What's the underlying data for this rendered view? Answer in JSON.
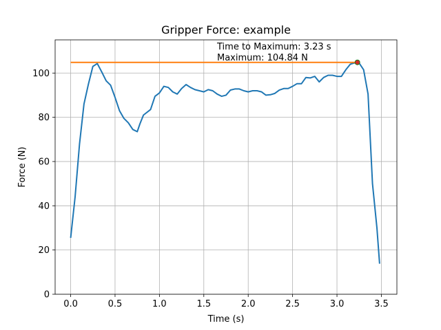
{
  "chart_data": {
    "type": "line",
    "title": "Gripper Force: example",
    "xlabel": "Time (s)",
    "ylabel": "Force (N)",
    "xlim": [
      -0.175,
      3.675
    ],
    "ylim": [
      0,
      115
    ],
    "xticks": [
      0.0,
      0.5,
      1.0,
      1.5,
      2.0,
      2.5,
      3.0,
      3.5
    ],
    "xtick_labels": [
      "0.0",
      "0.5",
      "1.0",
      "1.5",
      "2.0",
      "2.5",
      "3.0",
      "3.5"
    ],
    "yticks": [
      0,
      20,
      40,
      60,
      80,
      100
    ],
    "ytick_labels": [
      "0",
      "20",
      "40",
      "60",
      "80",
      "100"
    ],
    "grid": true,
    "series": [
      {
        "color": "#1f77b4",
        "x": [
          0.0,
          0.05,
          0.1,
          0.15,
          0.2,
          0.25,
          0.3,
          0.35,
          0.4,
          0.45,
          0.5,
          0.55,
          0.6,
          0.65,
          0.7,
          0.75,
          0.78,
          0.82,
          0.9,
          0.95,
          1.0,
          1.05,
          1.1,
          1.15,
          1.2,
          1.25,
          1.3,
          1.35,
          1.4,
          1.45,
          1.5,
          1.55,
          1.6,
          1.65,
          1.7,
          1.75,
          1.8,
          1.85,
          1.9,
          1.95,
          2.0,
          2.05,
          2.1,
          2.15,
          2.2,
          2.25,
          2.3,
          2.35,
          2.4,
          2.45,
          2.5,
          2.55,
          2.6,
          2.65,
          2.7,
          2.75,
          2.8,
          2.85,
          2.9,
          2.95,
          3.0,
          3.05,
          3.1,
          3.15,
          3.2,
          3.23,
          3.25,
          3.3,
          3.35,
          3.4,
          3.45,
          3.48
        ],
        "y": [
          25.5,
          44,
          68,
          86,
          95,
          103,
          104.3,
          100.5,
          96.5,
          94.5,
          89,
          83,
          79.5,
          77.5,
          74.5,
          73.5,
          77,
          81,
          83.5,
          89.5,
          91,
          94,
          93.5,
          91.5,
          90.5,
          93,
          94.8,
          93.5,
          92.5,
          92,
          91.5,
          92.5,
          92,
          90.5,
          89.5,
          90,
          92.3,
          92.8,
          92.8,
          92,
          91.5,
          92,
          92,
          91.5,
          90,
          90.2,
          90.8,
          92.3,
          93,
          93,
          94,
          95.2,
          95.2,
          98,
          97.8,
          98.5,
          96,
          98,
          99,
          99,
          98.5,
          98.5,
          101.5,
          104,
          104.6,
          104.84,
          104.5,
          101.5,
          90.5,
          50,
          30,
          13.8
        ]
      },
      {
        "name": "Maximum line",
        "color": "#ff7f0e",
        "x": [
          0.0,
          3.23
        ],
        "y": [
          104.84,
          104.84
        ]
      }
    ],
    "marker": {
      "x": 3.23,
      "y": 104.84,
      "color": "#d62728"
    },
    "annotations": [
      "Time to Maximum: 3.23 s",
      "Maximum: 104.84 N"
    ]
  }
}
